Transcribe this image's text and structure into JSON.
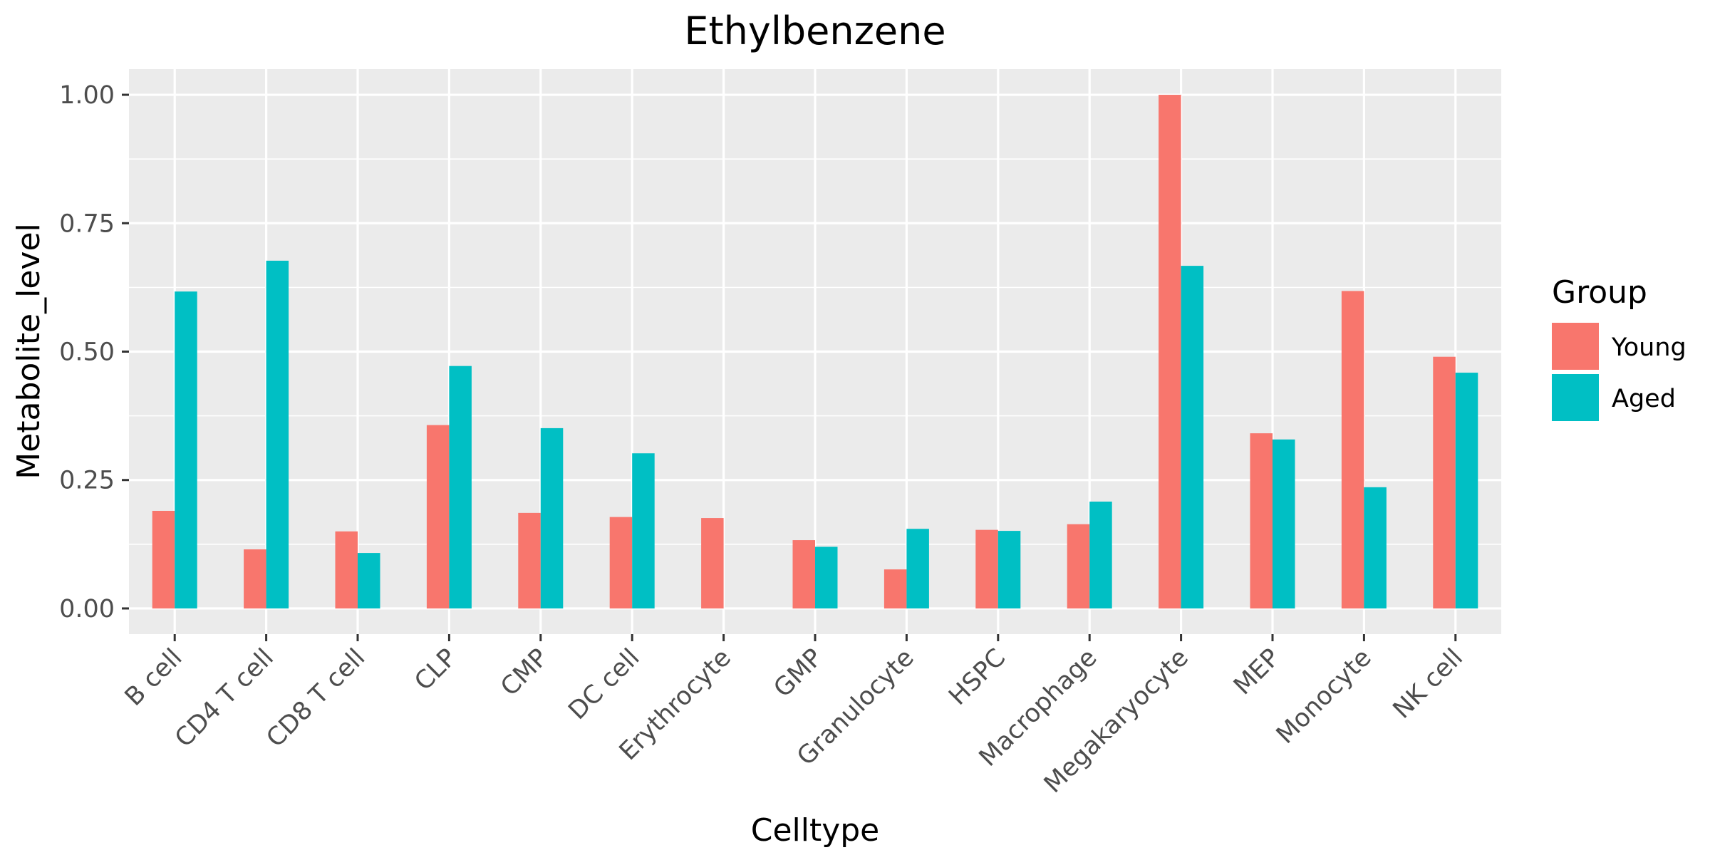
{
  "chart_data": {
    "type": "bar",
    "title": "Ethylbenzene",
    "xlabel": "Celltype",
    "ylabel": "Metabolite_level",
    "categories": [
      "B cell",
      "CD4 T cell",
      "CD8 T cell",
      "CLP",
      "CMP",
      "DC cell",
      "Erythrocyte",
      "GMP",
      "Granulocyte",
      "HSPC",
      "Macrophage",
      "Megakaryocyte",
      "MEP",
      "Monocyte",
      "NK cell"
    ],
    "series": [
      {
        "name": "Young",
        "color": "#F8766D",
        "values": [
          0.19,
          0.115,
          0.15,
          0.357,
          0.186,
          0.178,
          0.176,
          0.133,
          0.076,
          0.153,
          0.164,
          1.0,
          0.341,
          0.618,
          0.49
        ]
      },
      {
        "name": "Aged",
        "color": "#00BFC4",
        "values": [
          0.617,
          0.677,
          0.108,
          0.472,
          0.351,
          0.302,
          null,
          0.12,
          0.155,
          0.151,
          0.208,
          0.667,
          0.329,
          0.236,
          0.459
        ]
      }
    ],
    "ylim": [
      -0.05,
      1.05
    ],
    "yticks": [
      0,
      0.25,
      0.5,
      0.75,
      1.0
    ],
    "ytick_labels": [
      "0.00",
      "0.25",
      "0.50",
      "0.75",
      "1.00"
    ],
    "grid": true,
    "legend": {
      "title": "Group",
      "position": "right"
    }
  }
}
